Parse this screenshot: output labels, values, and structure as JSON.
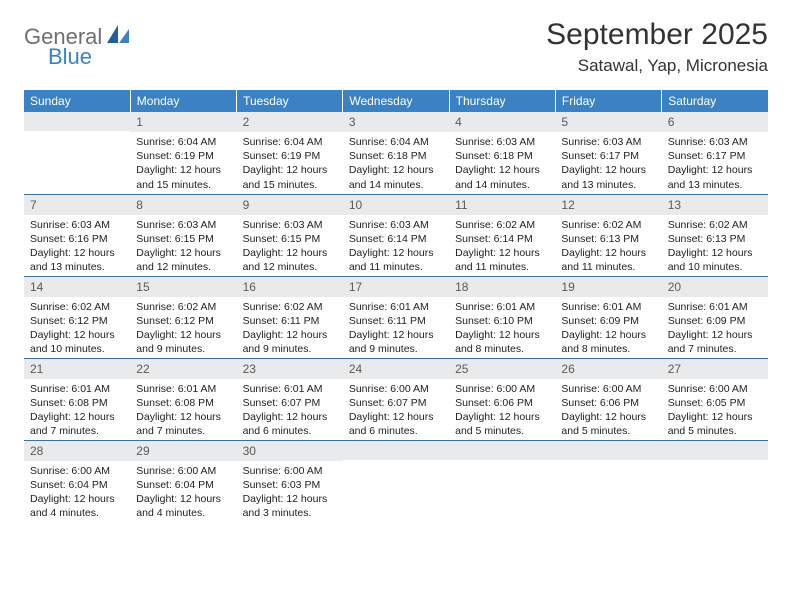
{
  "logo": {
    "part1": "General",
    "part2": "Blue"
  },
  "title": "September 2025",
  "location": "Satawal, Yap, Micronesia",
  "colors": {
    "header_bg": "#3b82c4",
    "header_text": "#ffffff",
    "daynum_bg": "#e9eaec",
    "daynum_text": "#5a5a5a",
    "body_text": "#222222",
    "divider": "#3b6fa0",
    "logo_gray": "#707070",
    "logo_blue": "#3b82c4",
    "page_bg": "#ffffff"
  },
  "day_headers": [
    "Sunday",
    "Monday",
    "Tuesday",
    "Wednesday",
    "Thursday",
    "Friday",
    "Saturday"
  ],
  "weeks": [
    [
      {
        "n": "",
        "sunrise": "",
        "sunset": "",
        "daylight": ""
      },
      {
        "n": "1",
        "sunrise": "Sunrise: 6:04 AM",
        "sunset": "Sunset: 6:19 PM",
        "daylight": "Daylight: 12 hours and 15 minutes."
      },
      {
        "n": "2",
        "sunrise": "Sunrise: 6:04 AM",
        "sunset": "Sunset: 6:19 PM",
        "daylight": "Daylight: 12 hours and 15 minutes."
      },
      {
        "n": "3",
        "sunrise": "Sunrise: 6:04 AM",
        "sunset": "Sunset: 6:18 PM",
        "daylight": "Daylight: 12 hours and 14 minutes."
      },
      {
        "n": "4",
        "sunrise": "Sunrise: 6:03 AM",
        "sunset": "Sunset: 6:18 PM",
        "daylight": "Daylight: 12 hours and 14 minutes."
      },
      {
        "n": "5",
        "sunrise": "Sunrise: 6:03 AM",
        "sunset": "Sunset: 6:17 PM",
        "daylight": "Daylight: 12 hours and 13 minutes."
      },
      {
        "n": "6",
        "sunrise": "Sunrise: 6:03 AM",
        "sunset": "Sunset: 6:17 PM",
        "daylight": "Daylight: 12 hours and 13 minutes."
      }
    ],
    [
      {
        "n": "7",
        "sunrise": "Sunrise: 6:03 AM",
        "sunset": "Sunset: 6:16 PM",
        "daylight": "Daylight: 12 hours and 13 minutes."
      },
      {
        "n": "8",
        "sunrise": "Sunrise: 6:03 AM",
        "sunset": "Sunset: 6:15 PM",
        "daylight": "Daylight: 12 hours and 12 minutes."
      },
      {
        "n": "9",
        "sunrise": "Sunrise: 6:03 AM",
        "sunset": "Sunset: 6:15 PM",
        "daylight": "Daylight: 12 hours and 12 minutes."
      },
      {
        "n": "10",
        "sunrise": "Sunrise: 6:03 AM",
        "sunset": "Sunset: 6:14 PM",
        "daylight": "Daylight: 12 hours and 11 minutes."
      },
      {
        "n": "11",
        "sunrise": "Sunrise: 6:02 AM",
        "sunset": "Sunset: 6:14 PM",
        "daylight": "Daylight: 12 hours and 11 minutes."
      },
      {
        "n": "12",
        "sunrise": "Sunrise: 6:02 AM",
        "sunset": "Sunset: 6:13 PM",
        "daylight": "Daylight: 12 hours and 11 minutes."
      },
      {
        "n": "13",
        "sunrise": "Sunrise: 6:02 AM",
        "sunset": "Sunset: 6:13 PM",
        "daylight": "Daylight: 12 hours and 10 minutes."
      }
    ],
    [
      {
        "n": "14",
        "sunrise": "Sunrise: 6:02 AM",
        "sunset": "Sunset: 6:12 PM",
        "daylight": "Daylight: 12 hours and 10 minutes."
      },
      {
        "n": "15",
        "sunrise": "Sunrise: 6:02 AM",
        "sunset": "Sunset: 6:12 PM",
        "daylight": "Daylight: 12 hours and 9 minutes."
      },
      {
        "n": "16",
        "sunrise": "Sunrise: 6:02 AM",
        "sunset": "Sunset: 6:11 PM",
        "daylight": "Daylight: 12 hours and 9 minutes."
      },
      {
        "n": "17",
        "sunrise": "Sunrise: 6:01 AM",
        "sunset": "Sunset: 6:11 PM",
        "daylight": "Daylight: 12 hours and 9 minutes."
      },
      {
        "n": "18",
        "sunrise": "Sunrise: 6:01 AM",
        "sunset": "Sunset: 6:10 PM",
        "daylight": "Daylight: 12 hours and 8 minutes."
      },
      {
        "n": "19",
        "sunrise": "Sunrise: 6:01 AM",
        "sunset": "Sunset: 6:09 PM",
        "daylight": "Daylight: 12 hours and 8 minutes."
      },
      {
        "n": "20",
        "sunrise": "Sunrise: 6:01 AM",
        "sunset": "Sunset: 6:09 PM",
        "daylight": "Daylight: 12 hours and 7 minutes."
      }
    ],
    [
      {
        "n": "21",
        "sunrise": "Sunrise: 6:01 AM",
        "sunset": "Sunset: 6:08 PM",
        "daylight": "Daylight: 12 hours and 7 minutes."
      },
      {
        "n": "22",
        "sunrise": "Sunrise: 6:01 AM",
        "sunset": "Sunset: 6:08 PM",
        "daylight": "Daylight: 12 hours and 7 minutes."
      },
      {
        "n": "23",
        "sunrise": "Sunrise: 6:01 AM",
        "sunset": "Sunset: 6:07 PM",
        "daylight": "Daylight: 12 hours and 6 minutes."
      },
      {
        "n": "24",
        "sunrise": "Sunrise: 6:00 AM",
        "sunset": "Sunset: 6:07 PM",
        "daylight": "Daylight: 12 hours and 6 minutes."
      },
      {
        "n": "25",
        "sunrise": "Sunrise: 6:00 AM",
        "sunset": "Sunset: 6:06 PM",
        "daylight": "Daylight: 12 hours and 5 minutes."
      },
      {
        "n": "26",
        "sunrise": "Sunrise: 6:00 AM",
        "sunset": "Sunset: 6:06 PM",
        "daylight": "Daylight: 12 hours and 5 minutes."
      },
      {
        "n": "27",
        "sunrise": "Sunrise: 6:00 AM",
        "sunset": "Sunset: 6:05 PM",
        "daylight": "Daylight: 12 hours and 5 minutes."
      }
    ],
    [
      {
        "n": "28",
        "sunrise": "Sunrise: 6:00 AM",
        "sunset": "Sunset: 6:04 PM",
        "daylight": "Daylight: 12 hours and 4 minutes."
      },
      {
        "n": "29",
        "sunrise": "Sunrise: 6:00 AM",
        "sunset": "Sunset: 6:04 PM",
        "daylight": "Daylight: 12 hours and 4 minutes."
      },
      {
        "n": "30",
        "sunrise": "Sunrise: 6:00 AM",
        "sunset": "Sunset: 6:03 PM",
        "daylight": "Daylight: 12 hours and 3 minutes."
      },
      {
        "n": "",
        "sunrise": "",
        "sunset": "",
        "daylight": ""
      },
      {
        "n": "",
        "sunrise": "",
        "sunset": "",
        "daylight": ""
      },
      {
        "n": "",
        "sunrise": "",
        "sunset": "",
        "daylight": ""
      },
      {
        "n": "",
        "sunrise": "",
        "sunset": "",
        "daylight": ""
      }
    ]
  ]
}
